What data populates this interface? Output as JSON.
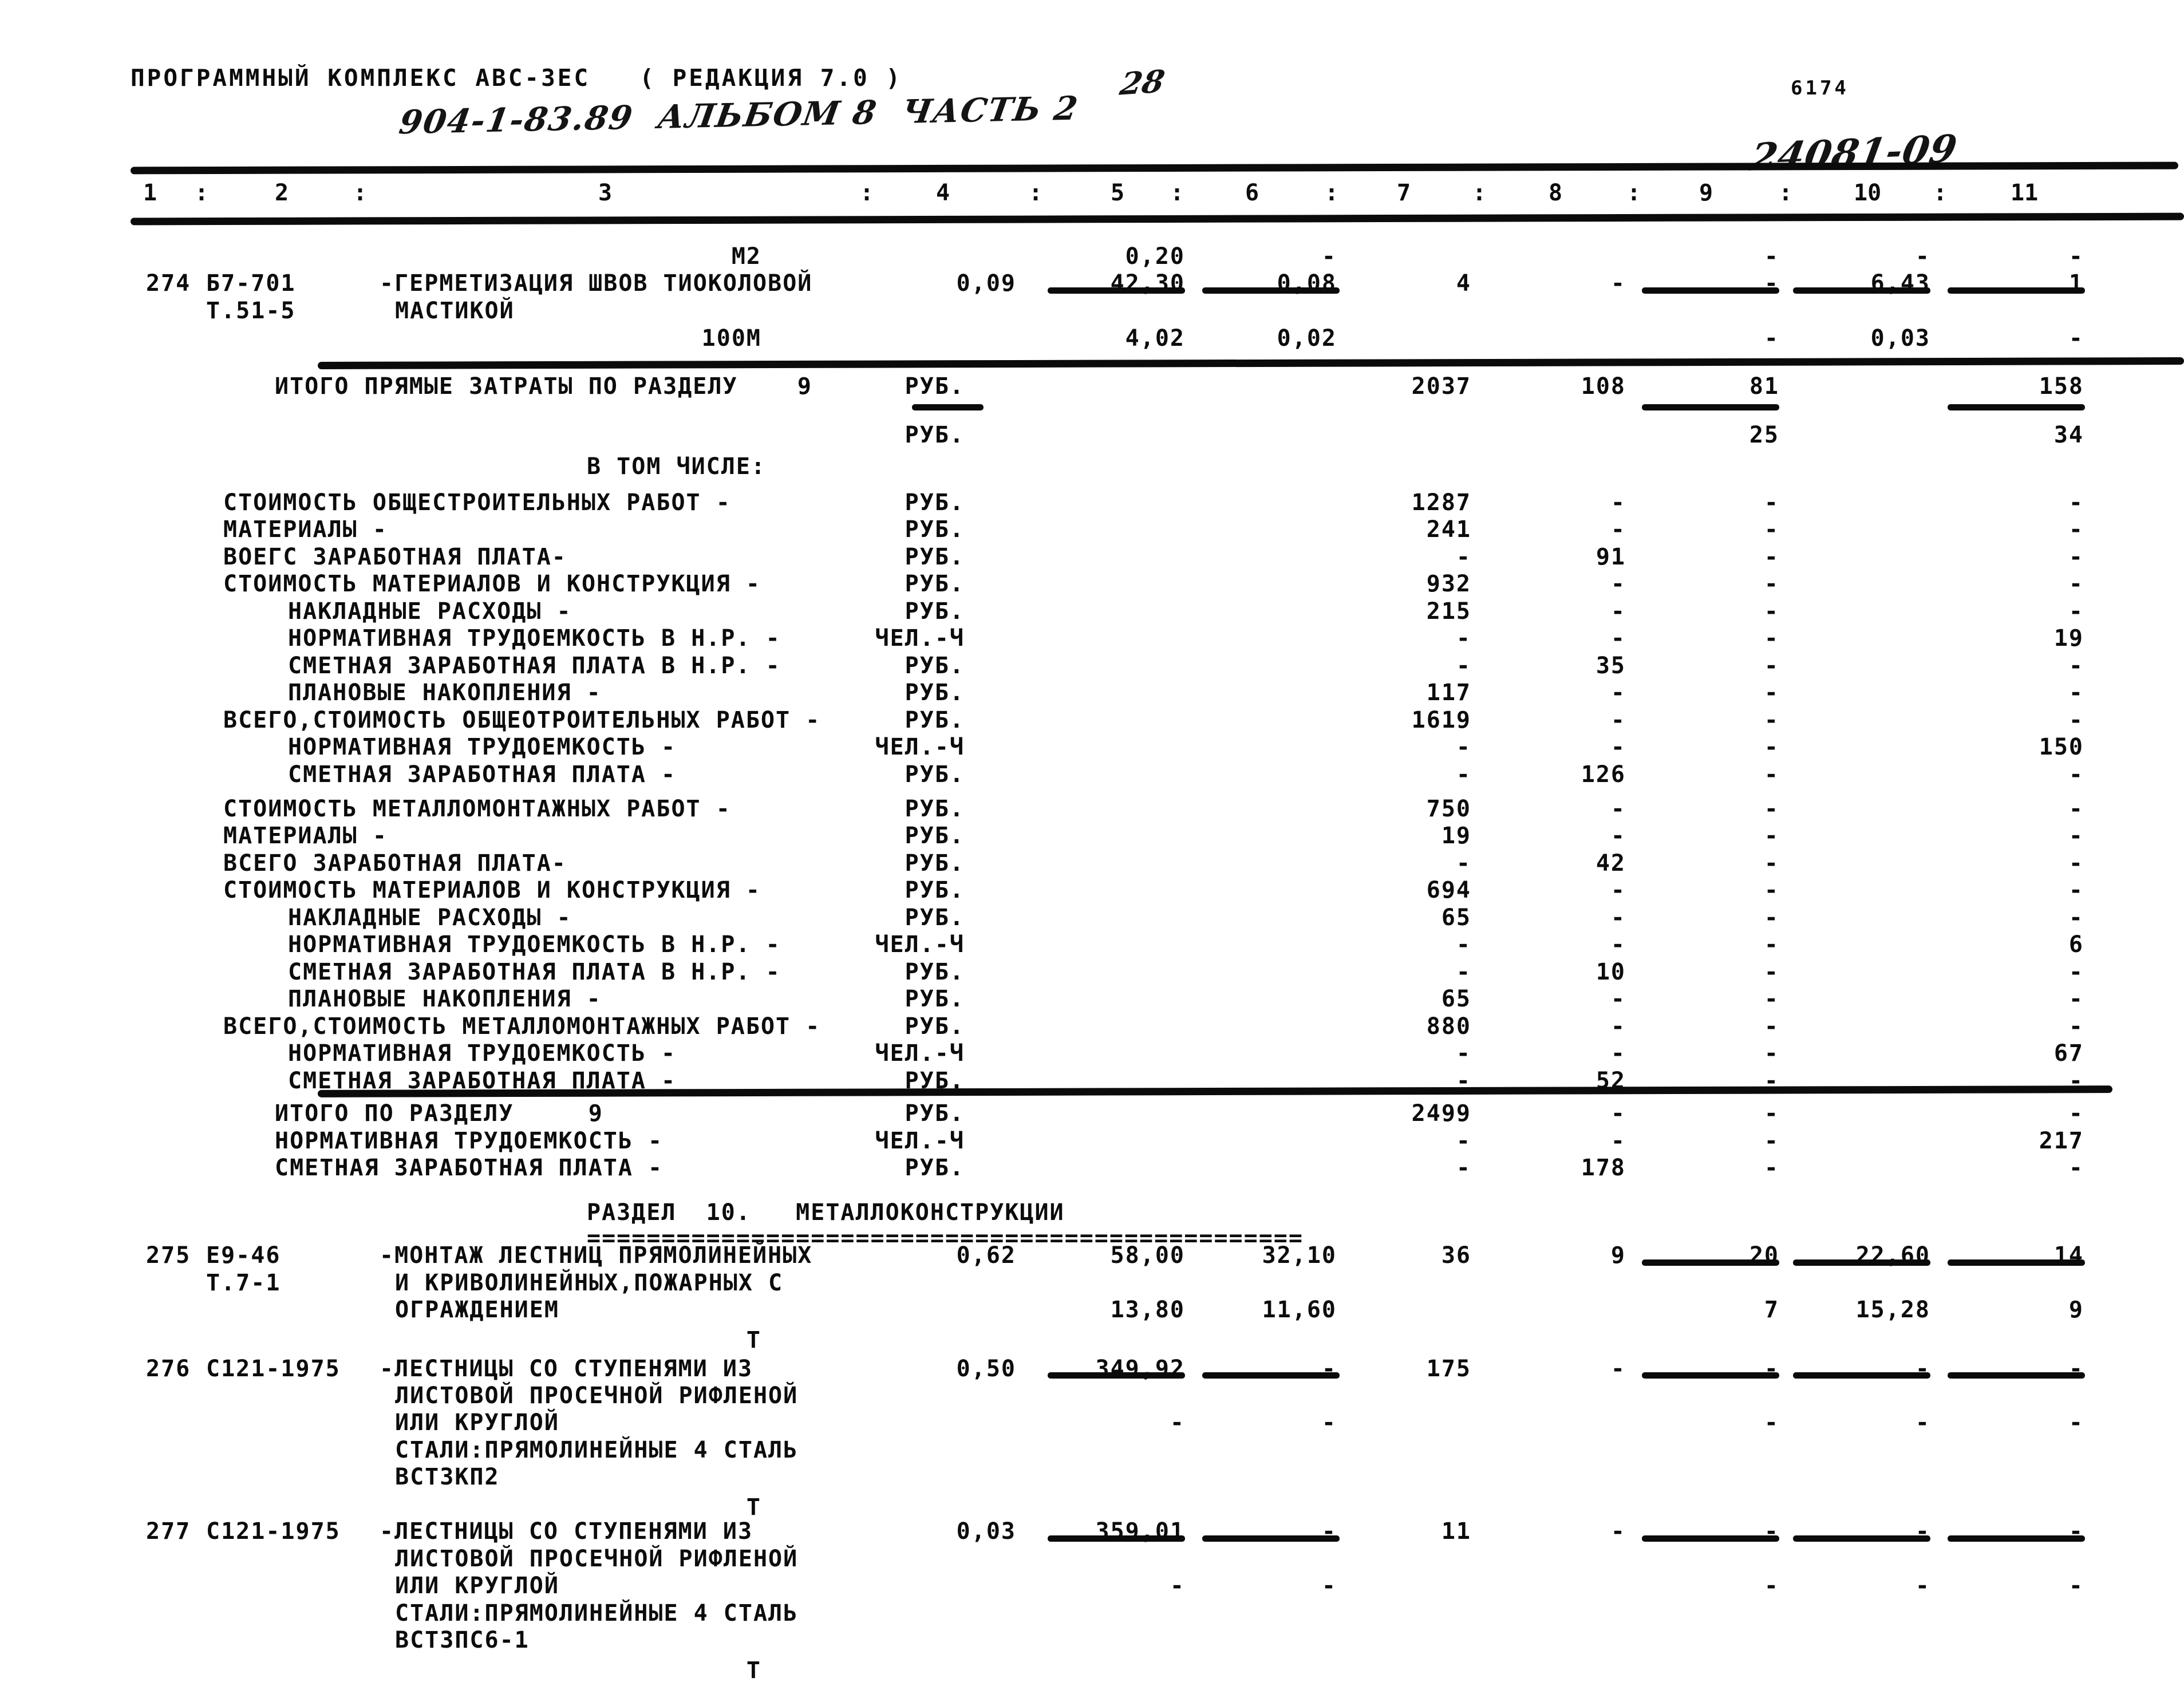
{
  "page": {
    "title": "ПРОГРАММНЫЙ КОМПЛЕКС АВС-ЗЕС   ( РЕДАКЦИЯ 7.0 )",
    "handwritten_subtitle": "904-1-83.89  АЛЬБОМ 8  ЧАСТЬ 2",
    "page_number": "28",
    "sheet_number": "6174",
    "handwritten_stamp": "24081-09"
  },
  "table": {
    "column_numbers": [
      "1",
      "2",
      "3",
      "4",
      "5",
      "6",
      "7",
      "8",
      "9",
      "10",
      "11"
    ],
    "lines": [
      {
        "unit3": "М2",
        "v5": "0,20",
        "v6": "-",
        "v9": "-",
        "v10": "-",
        "v11": "-"
      },
      {
        "no": "274",
        "code": "Б7-701",
        "desc": "-ГЕРМЕТИЗАЦИЯ ШВОВ ТИОКОЛОВОЙ",
        "v4": "0,09",
        "v5": "42,30",
        "v6": "0,08",
        "v7": "4",
        "v8": "-",
        "v9": "-",
        "v10": "6,43",
        "v11": "1"
      },
      {
        "code": "Т.51-5",
        "desc_cont": "МАСТИКОЙ",
        "underlines": [
          "u5",
          "u6",
          "u9",
          "u10",
          "u11"
        ]
      },
      {
        "unit3": "100М",
        "v5": "4,02",
        "v6": "0,02",
        "v9": "-",
        "v10": "0,03",
        "v11": "-"
      },
      {
        "rule": true
      },
      {
        "label_total": "ИТОГО ПРЯМЫЕ ЗАТРАТЫ ПО РАЗДЕЛУ    9",
        "unit": "РУБ.",
        "v7": "2037",
        "v8": "108",
        "v9": "81",
        "v11": "158"
      },
      {
        "underlines": [
          "uu",
          "u9",
          "u11"
        ]
      },
      {
        "unit": "РУБ.",
        "v9": "25",
        "v11": "34"
      },
      {
        "center": "В ТОМ ЧИСЛЕ:"
      },
      {
        "label": "СТОИМОСТЬ ОБЩЕСТРОИТЕЛЬНЫХ РАБОТ -",
        "unit": "РУБ.",
        "v7": "1287",
        "v8": "-",
        "v9": "-",
        "v11": "-"
      },
      {
        "label": "МАТЕРИАЛЫ -",
        "unit": "РУБ.",
        "v7": "241",
        "v8": "-",
        "v9": "-",
        "v11": "-"
      },
      {
        "label": "ВОЕГС ЗАРАБОТНАЯ ПЛАТА-",
        "unit": "РУБ.",
        "v7": "-",
        "v8": "91",
        "v9": "-",
        "v11": "-"
      },
      {
        "label": "СТОИМОСТЬ МАТЕРИАЛОВ И КОНСТРУКЦИЯ -",
        "unit": "РУБ.",
        "v7": "932",
        "v8": "-",
        "v9": "-",
        "v11": "-"
      },
      {
        "label_indent": "НАКЛАДНЫЕ РАСХОДЫ -",
        "unit": "РУБ.",
        "v7": "215",
        "v8": "-",
        "v9": "-",
        "v11": "-"
      },
      {
        "label_indent": "НОРМАТИВНАЯ ТРУДОЕМКОСТЬ В Н.Р. -",
        "unit": "ЧЕЛ.-Ч",
        "v7": "-",
        "v8": "-",
        "v9": "-",
        "v11": "19"
      },
      {
        "label_indent": "СМЕТНАЯ ЗАРАБОТНАЯ ПЛАТА В Н.Р. -",
        "unit": "РУБ.",
        "v7": "-",
        "v8": "35",
        "v9": "-",
        "v11": "-"
      },
      {
        "label_indent": "ПЛАНОВЫЕ НАКОПЛЕНИЯ -",
        "unit": "РУБ.",
        "v7": "117",
        "v8": "-",
        "v9": "-",
        "v11": "-"
      },
      {
        "label": "ВСЕГО,СТОИМОСТЬ ОБЩЕОТРОИТЕЛЬНЫХ РАБОТ -",
        "unit": "РУБ.",
        "v7": "1619",
        "v8": "-",
        "v9": "-",
        "v11": "-"
      },
      {
        "label_indent": "НОРМАТИВНАЯ ТРУДОЕМКОСТЬ -",
        "unit": "ЧЕЛ.-Ч",
        "v7": "-",
        "v8": "-",
        "v9": "-",
        "v11": "150"
      },
      {
        "label_indent": "СМЕТНАЯ ЗАРАБОТНАЯ ПЛАТА -",
        "unit": "РУБ.",
        "v7": "-",
        "v8": "126",
        "v9": "-",
        "v11": "-"
      },
      {
        "label": "СТОИМОСТЬ МЕТАЛЛОМОНТАЖНЫХ РАБОТ -",
        "unit": "РУБ.",
        "v7": "750",
        "v8": "-",
        "v9": "-",
        "v11": "-"
      },
      {
        "label": "МАТЕРИАЛЫ -",
        "unit": "РУБ.",
        "v7": "19",
        "v8": "-",
        "v9": "-",
        "v11": "-"
      },
      {
        "label": "ВСЕГО ЗАРАБОТНАЯ ПЛАТА-",
        "unit": "РУБ.",
        "v7": "-",
        "v8": "42",
        "v9": "-",
        "v11": "-"
      },
      {
        "label": "СТОИМОСТЬ МАТЕРИАЛОВ И КОНСТРУКЦИЯ -",
        "unit": "РУБ.",
        "v7": "694",
        "v8": "-",
        "v9": "-",
        "v11": "-"
      },
      {
        "label_indent": "НАКЛАДНЫЕ РАСХОДЫ -",
        "unit": "РУБ.",
        "v7": "65",
        "v8": "-",
        "v9": "-",
        "v11": "-"
      },
      {
        "label_indent": "НОРМАТИВНАЯ ТРУДОЕМКОСТЬ В Н.Р. -",
        "unit": "ЧЕЛ.-Ч",
        "v7": "-",
        "v8": "-",
        "v9": "-",
        "v11": "6"
      },
      {
        "label_indent": "СМЕТНАЯ ЗАРАБОТНАЯ ПЛАТА В Н.Р. -",
        "unit": "РУБ.",
        "v7": "-",
        "v8": "10",
        "v9": "-",
        "v11": "-"
      },
      {
        "label_indent": "ПЛАНОВЫЕ НАКОПЛЕНИЯ -",
        "unit": "РУБ.",
        "v7": "65",
        "v8": "-",
        "v9": "-",
        "v11": "-"
      },
      {
        "label": "ВСЕГО,СТОИМОСТЬ МЕТАЛЛОМОНТАЖНЫХ РАБОТ -",
        "unit": "РУБ.",
        "v7": "880",
        "v8": "-",
        "v9": "-",
        "v11": "-"
      },
      {
        "label_indent": "НОРМАТИВНАЯ ТРУДОЕМКОСТЬ -",
        "unit": "ЧЕЛ.-Ч",
        "v7": "-",
        "v8": "-",
        "v9": "-",
        "v11": "67"
      },
      {
        "label_indent": "СМЕТНАЯ ЗАРАБОТНАЯ ПЛАТА -",
        "unit": "РУБ.",
        "v7": "-",
        "v8": "52",
        "v9": "-",
        "v11": "-"
      },
      {
        "rule": true
      },
      {
        "label_total": "ИТОГО ПО РАЗДЕЛУ     9",
        "unit": "РУБ.",
        "v7": "2499",
        "v8": "-",
        "v9": "-",
        "v11": "-"
      },
      {
        "label_total": "НОРМАТИВНАЯ ТРУДОЕМКОСТЬ -",
        "unit": "ЧЕЛ.-Ч",
        "v7": "-",
        "v8": "-",
        "v9": "-",
        "v11": "217"
      },
      {
        "label_total": "СМЕТНАЯ ЗАРАБОТНАЯ ПЛАТА -",
        "unit": "РУБ.",
        "v7": "-",
        "v8": "178",
        "v9": "-",
        "v11": "-"
      },
      {
        "center": "РАЗДЕЛ  10.   МЕТАЛЛОКОНСТРУКЦИИ"
      },
      {
        "equals": "================================================"
      },
      {
        "no": "275",
        "code": "Е9-46",
        "desc": "-МОНТАЖ ЛЕСТНИЦ ПРЯМОЛИНЕЙНЫХ",
        "v4": "0,62",
        "v5": "58,00",
        "v6": "32,10",
        "v7": "36",
        "v8": "9",
        "v9": "20",
        "v10": "22,60",
        "v11": "14"
      },
      {
        "code": "Т.7-1",
        "desc_cont": "И КРИВОЛИНЕЙНЫХ,ПОЖАРНЫХ С",
        "underlines": [
          "u9",
          "u10",
          "u11"
        ]
      },
      {
        "desc_cont": "ОГРАЖДЕНИЕМ",
        "v5": "13,80",
        "v6": "11,60",
        "v9": "7",
        "v10": "15,28",
        "v11": "9"
      },
      {
        "unit3": "Т"
      },
      {
        "no": "276",
        "code": "С121-1975",
        "desc": "-ЛЕСТНИЦЫ СО СТУПЕНЯМИ ИЗ",
        "v4": "0,50",
        "v5": "349,92",
        "v6": "-",
        "v7": "175",
        "v8": "-",
        "v9": "-",
        "v10": "-",
        "v11": "-"
      },
      {
        "desc_cont": "ЛИСТОВОЙ ПРОСЕЧНОЙ РИФЛЕНОЙ",
        "underlines": [
          "u5",
          "u6",
          "u9",
          "u10",
          "u11"
        ]
      },
      {
        "desc_cont": "ИЛИ КРУГЛОЙ",
        "v5": "-",
        "v6": "-",
        "v9": "-",
        "v10": "-",
        "v11": "-"
      },
      {
        "desc_cont": "СТАЛИ:ПРЯМОЛИНЕЙНЫЕ 4 СТАЛЬ"
      },
      {
        "desc_cont": "ВСТ3КП2"
      },
      {
        "unit3": "Т"
      },
      {
        "no": "277",
        "code": "С121-1975",
        "desc": "-ЛЕСТНИЦЫ СО СТУПЕНЯМИ ИЗ",
        "v4": "0,03",
        "v5": "359,01",
        "v6": "-",
        "v7": "11",
        "v8": "-",
        "v9": "-",
        "v10": "-",
        "v11": "-"
      },
      {
        "desc_cont": "ЛИСТОВОЙ ПРОСЕЧНОЙ РИФЛЕНОЙ",
        "underlines": [
          "u5",
          "u6",
          "u9",
          "u10",
          "u11"
        ]
      },
      {
        "desc_cont": "ИЛИ КРУГЛОЙ",
        "v5": "-",
        "v6": "-",
        "v9": "-",
        "v10": "-",
        "v11": "-"
      },
      {
        "desc_cont": "СТАЛИ:ПРЯМОЛИНЕЙНЫЕ 4 СТАЛЬ"
      },
      {
        "desc_cont": "ВСТ3ПС6-1"
      },
      {
        "unit3": "Т"
      }
    ]
  }
}
